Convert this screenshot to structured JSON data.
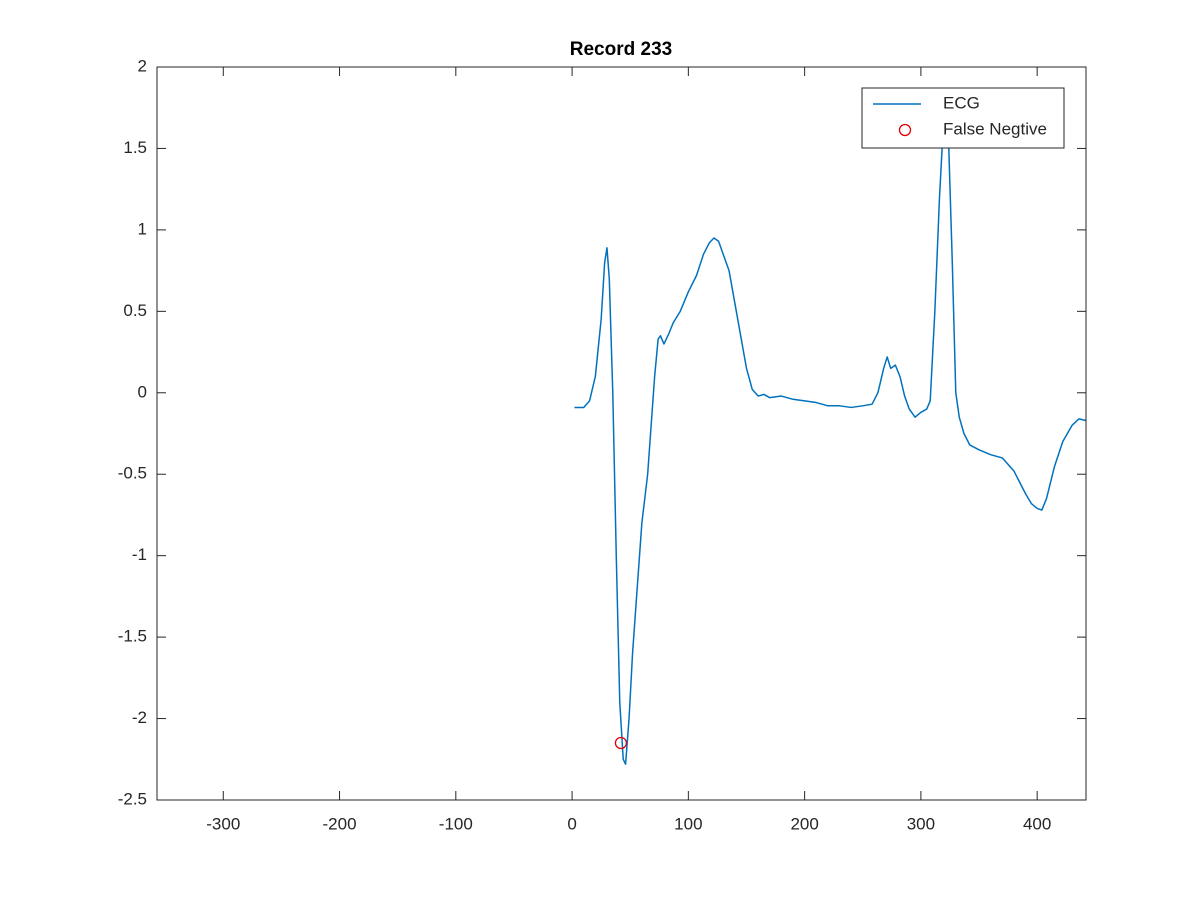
{
  "chart_data": {
    "type": "line",
    "title": "Record 233",
    "xlim": [
      -357,
      442
    ],
    "ylim": [
      -2.5,
      2
    ],
    "xticks": [
      -300,
      -200,
      -100,
      0,
      100,
      200,
      300,
      400
    ],
    "yticks": [
      -2.5,
      -2,
      -1.5,
      -1,
      -0.5,
      0,
      0.5,
      1,
      1.5,
      2
    ],
    "legend": "northeast",
    "series": [
      {
        "name": "ECG",
        "color": "#0072bd",
        "style": "line",
        "x": [
          2,
          10,
          15,
          20,
          25,
          28,
          30,
          32,
          35,
          38,
          41,
          44,
          46,
          49,
          52,
          55,
          60,
          65,
          68,
          71,
          74,
          76,
          79,
          83,
          87,
          93,
          100,
          107,
          113,
          118,
          122,
          126,
          130,
          135,
          140,
          145,
          150,
          155,
          160,
          165,
          170,
          180,
          190,
          200,
          210,
          220,
          230,
          240,
          250,
          258,
          263,
          268,
          271,
          274,
          278,
          282,
          286,
          290,
          295,
          300,
          305,
          308,
          312,
          316,
          319,
          321,
          324,
          327,
          330,
          333,
          337,
          342,
          350,
          360,
          370,
          380,
          385,
          390,
          395,
          400,
          404,
          408,
          415,
          422,
          430,
          436,
          442
        ],
        "values": [
          -0.09,
          -0.09,
          -0.05,
          0.1,
          0.45,
          0.8,
          0.89,
          0.7,
          0.0,
          -1.0,
          -1.9,
          -2.25,
          -2.28,
          -2.0,
          -1.6,
          -1.3,
          -0.8,
          -0.5,
          -0.2,
          0.1,
          0.33,
          0.35,
          0.3,
          0.36,
          0.43,
          0.5,
          0.62,
          0.72,
          0.85,
          0.92,
          0.95,
          0.93,
          0.85,
          0.75,
          0.55,
          0.35,
          0.15,
          0.02,
          -0.02,
          -0.01,
          -0.03,
          -0.02,
          -0.04,
          -0.05,
          -0.06,
          -0.08,
          -0.08,
          -0.09,
          -0.08,
          -0.07,
          0.0,
          0.15,
          0.22,
          0.15,
          0.17,
          0.1,
          -0.02,
          -0.1,
          -0.15,
          -0.12,
          -0.1,
          -0.05,
          0.5,
          1.2,
          1.6,
          1.65,
          1.5,
          0.8,
          0.0,
          -0.15,
          -0.25,
          -0.32,
          -0.35,
          -0.38,
          -0.4,
          -0.48,
          -0.55,
          -0.62,
          -0.68,
          -0.71,
          -0.72,
          -0.65,
          -0.45,
          -0.3,
          -0.2,
          -0.16,
          -0.17
        ]
      },
      {
        "name": "False Negtive",
        "color": "#e00000",
        "style": "marker",
        "x": [
          42
        ],
        "values": [
          -2.15
        ]
      }
    ]
  }
}
